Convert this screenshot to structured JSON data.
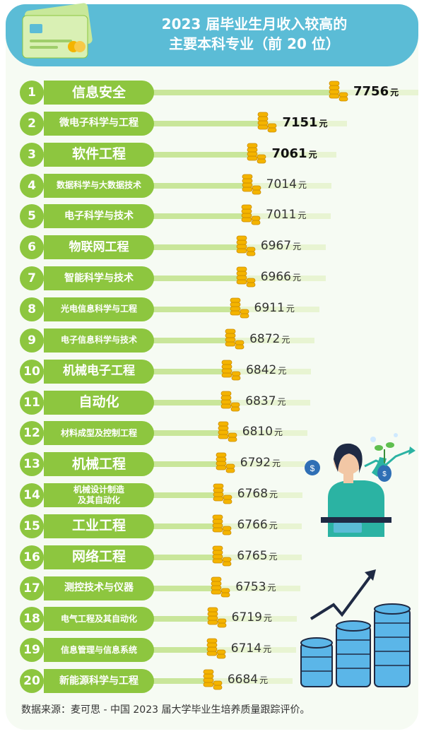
{
  "title_line1": "2023 届毕业生月收入较高的",
  "title_line2": "主要本科专业（前 20 位）",
  "source": "数据来源：麦可思 - 中国 2023 届大学毕业生培养质量跟踪评价。",
  "unit": "元",
  "colors": {
    "header": "#5bbcd6",
    "pill": "#8dc63f",
    "bar": "#c9e69a",
    "coin": "#f4b400"
  },
  "chart_data": {
    "type": "bar",
    "title": "2023 届毕业生月收入较高的主要本科专业（前 20 位）",
    "unit": "元",
    "orientation": "horizontal",
    "ranks": [
      "1",
      "2",
      "3",
      "4",
      "5",
      "6",
      "7",
      "8",
      "9",
      "10",
      "11",
      "12",
      "13",
      "14",
      "15",
      "16",
      "17",
      "18",
      "19",
      "20"
    ],
    "categories": [
      "信息安全",
      "微电子科学与工程",
      "软件工程",
      "数据科学与大数据技术",
      "电子科学与技术",
      "物联网工程",
      "智能科学与技术",
      "光电信息科学与工程",
      "电子信息科学与技术",
      "机械电子工程",
      "自动化",
      "材料成型及控制工程",
      "机械工程",
      "机械设计制造\n及其自动化",
      "工业工程",
      "网络工程",
      "测控技术与仪器",
      "电气工程及其自动化",
      "信息管理与信息系统",
      "新能源科学与工程"
    ],
    "values": [
      7756,
      7151,
      7061,
      7014,
      7011,
      6967,
      6966,
      6911,
      6872,
      6842,
      6837,
      6810,
      6792,
      6768,
      6766,
      6765,
      6753,
      6719,
      6714,
      6684
    ]
  }
}
